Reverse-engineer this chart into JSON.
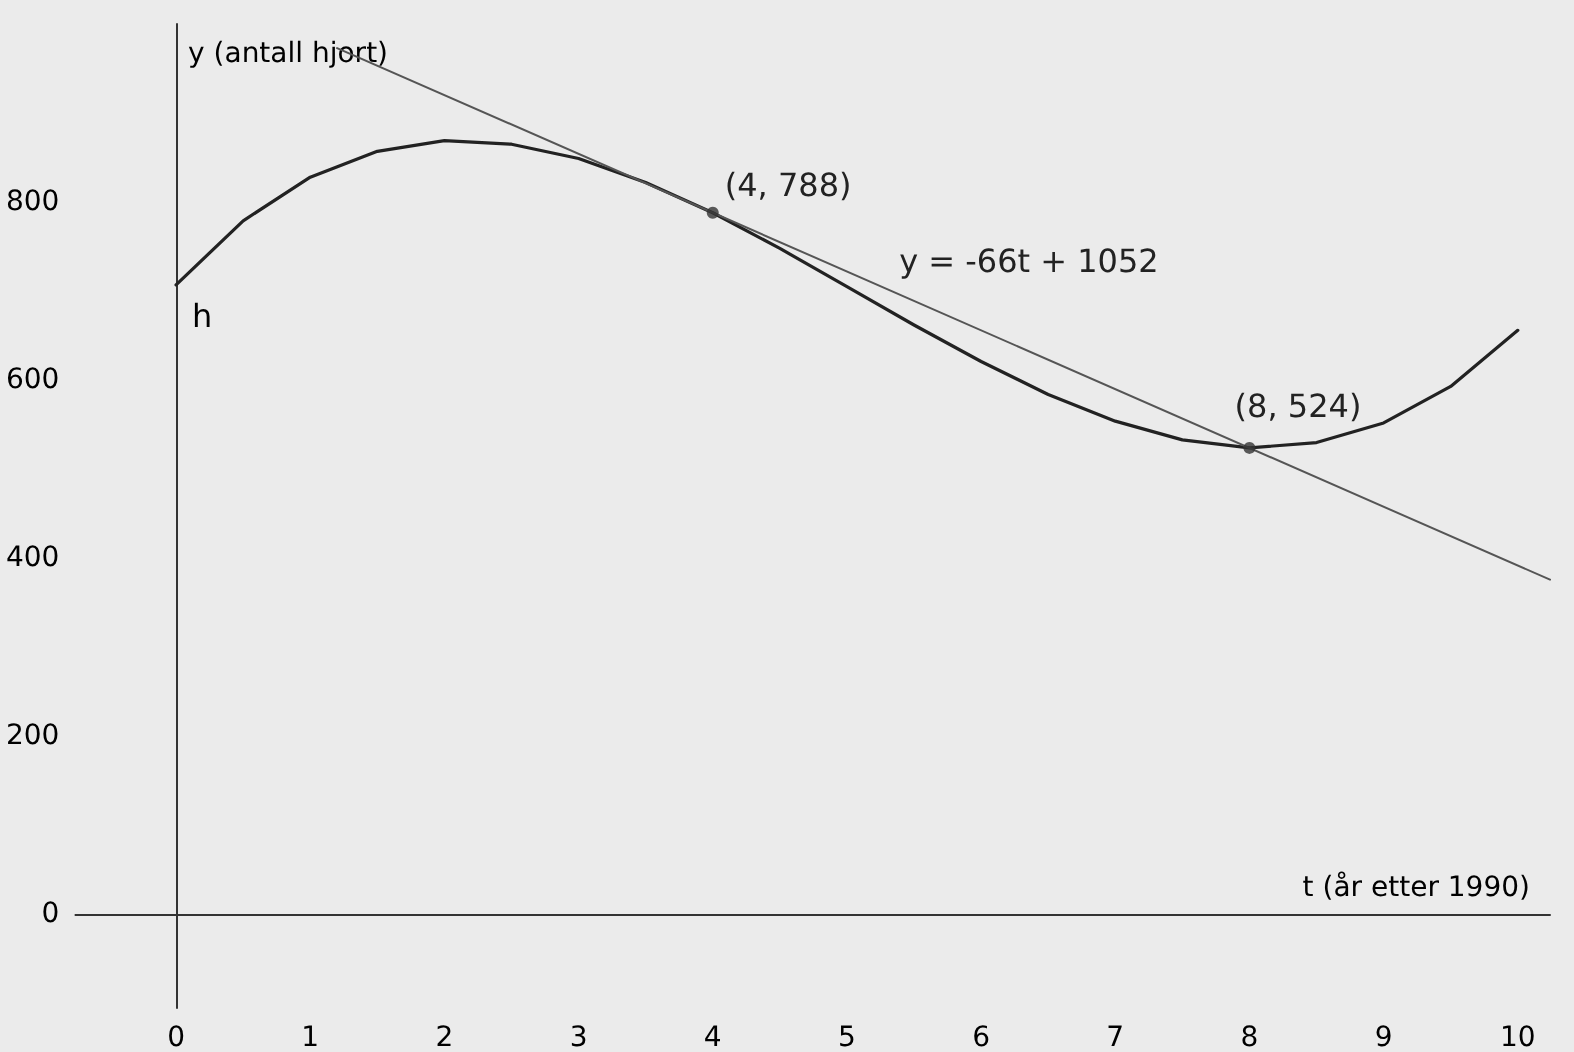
{
  "chart_data": {
    "type": "line",
    "xlabel": "t (år etter 1990)",
    "ylabel": "y (antall hjort)",
    "xlim": [
      -0.75,
      10.24
    ],
    "ylim": [
      -105,
      1000
    ],
    "xticks": [
      0,
      1,
      2,
      3,
      4,
      5,
      6,
      7,
      8,
      9,
      10
    ],
    "yticks": [
      0,
      200,
      400,
      600,
      800
    ],
    "marker": "none",
    "line_style": "solid",
    "series": [
      {
        "color": "#222222",
        "x": [
          0,
          0.5,
          1,
          1.5,
          2,
          2.5,
          3,
          3.5,
          4,
          4.5,
          5,
          5.5,
          6,
          6.5,
          7,
          7.5,
          8,
          8.5,
          9,
          9.5,
          10
        ],
        "values": [
          707,
          779,
          828,
          857,
          869,
          865,
          849,
          822,
          788,
          748,
          705,
          662,
          621,
          584,
          554,
          533,
          524,
          530,
          552,
          593,
          656
        ]
      },
      {
        "color": "#555555",
        "x": [
          1.2,
          10.24
        ],
        "values": [
          973,
          376
        ]
      },
      {
        "type": "scatter",
        "color": "#333333",
        "marker": "circle",
        "x": [
          4,
          8
        ],
        "values": [
          788,
          524
        ]
      }
    ],
    "annotations": [
      {
        "text": "(4, 788)",
        "x": 4,
        "y": 788
      },
      {
        "text": "(8, 524)",
        "x": 7.8,
        "y": 540
      },
      {
        "text": "y = -66t + 1052",
        "x": 5.3,
        "y": 702
      },
      "h"
    ]
  }
}
